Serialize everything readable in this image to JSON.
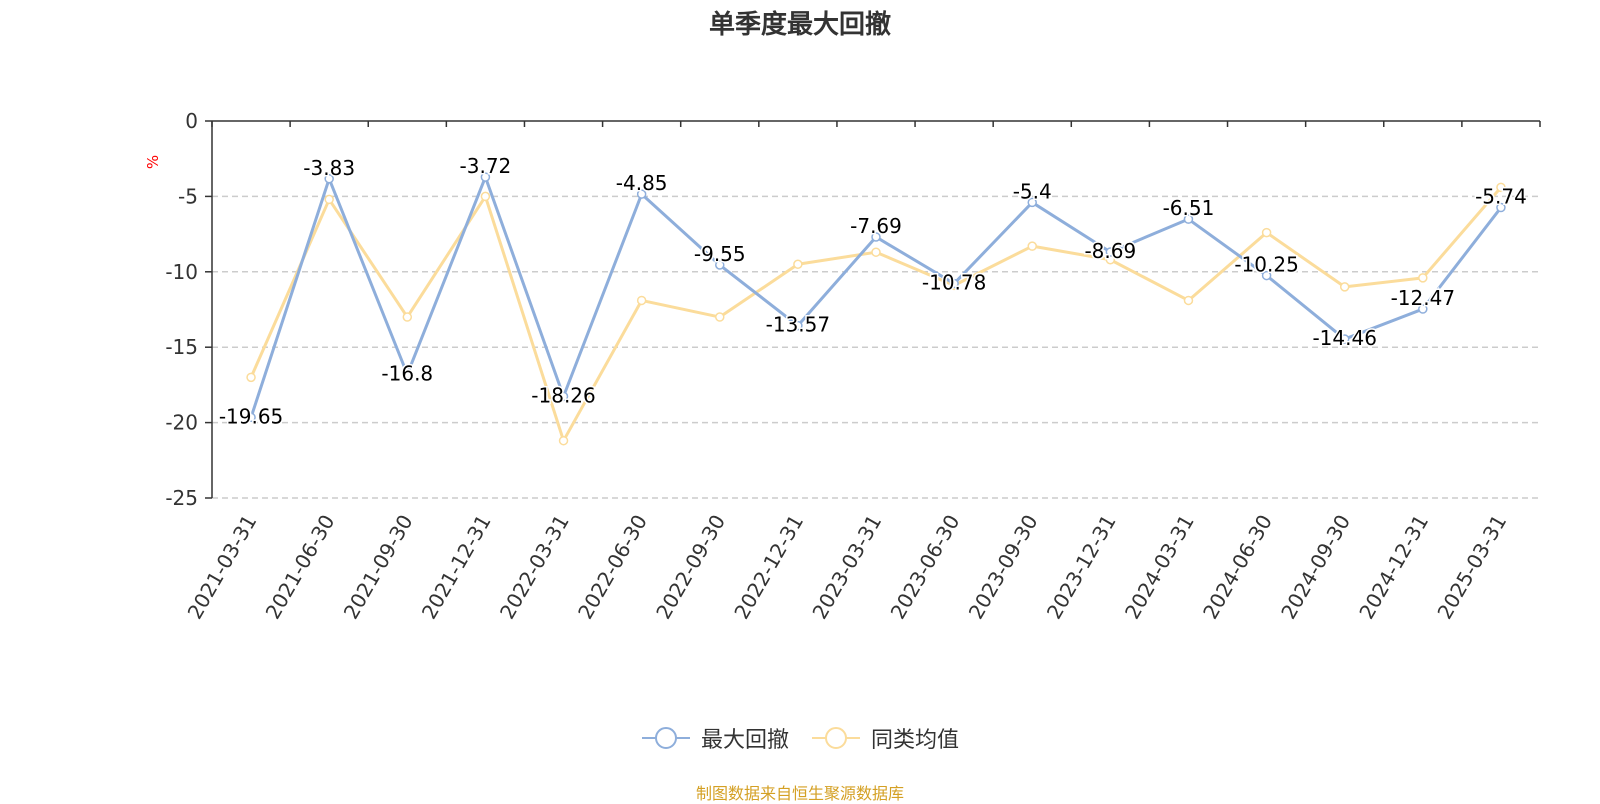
{
  "chart_data": {
    "type": "line",
    "title": "单季度最大回撤",
    "ylabel": "%",
    "ylim": [
      -25,
      0
    ],
    "yticks": [
      0,
      -5,
      -10,
      -15,
      -20,
      -25
    ],
    "grid": true,
    "legend_position": "bottom-center",
    "categories": [
      "2021-03-31",
      "2021-06-30",
      "2021-09-30",
      "2021-12-31",
      "2022-03-31",
      "2022-06-30",
      "2022-09-30",
      "2022-12-31",
      "2023-03-31",
      "2023-06-30",
      "2023-09-30",
      "2023-12-31",
      "2024-03-31",
      "2024-06-30",
      "2024-09-30",
      "2024-12-31",
      "2025-03-31"
    ],
    "series": [
      {
        "name": "最大回撤",
        "color": "#8eaedb",
        "labeled": true,
        "values": [
          -19.65,
          -3.83,
          -16.8,
          -3.72,
          -18.26,
          -4.85,
          -9.55,
          -13.57,
          -7.69,
          -10.78,
          -5.4,
          -8.69,
          -6.51,
          -10.25,
          -14.46,
          -12.47,
          -5.74
        ]
      },
      {
        "name": "同类均值",
        "color": "#fbdc9b",
        "labeled": false,
        "values": [
          -17.0,
          -5.2,
          -13.0,
          -5.0,
          -21.2,
          -11.9,
          -13.0,
          -9.5,
          -8.7,
          -10.9,
          -8.3,
          -9.2,
          -11.9,
          -7.4,
          -11.0,
          -10.4,
          -4.4
        ]
      }
    ]
  },
  "source_note": "制图数据来自恒生聚源数据库",
  "colors": {
    "title": "#333333",
    "axis": "#333333",
    "grid": "#cccccc",
    "ylabel": "#ff0000",
    "label": "#000000",
    "source_note": "#d4a024"
  }
}
